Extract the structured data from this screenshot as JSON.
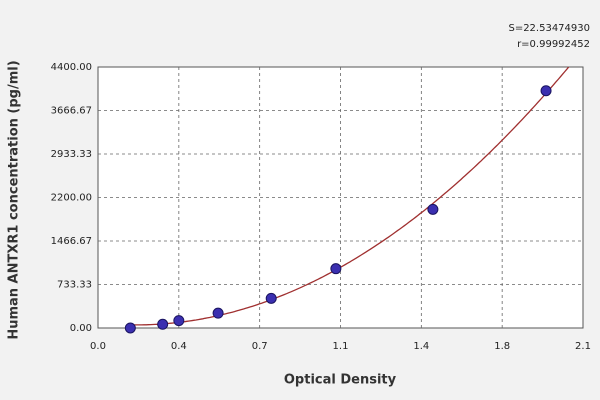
{
  "chart_data": {
    "type": "scatter",
    "annotations": [
      "S=22.53474930",
      "r=0.99992452"
    ],
    "x_label": "Optical Density",
    "y_label": "Human ANTXR1 concentration (pg/ml)",
    "x": [
      0.14,
      0.28,
      0.35,
      0.52,
      0.75,
      1.03,
      1.45,
      1.94
    ],
    "values": [
      0,
      62.5,
      125,
      250,
      500,
      1000,
      2000,
      4000
    ],
    "color": "#3b2fb0",
    "fit_color": "#a03030",
    "xlim": [
      0,
      2.1
    ],
    "ylim": [
      0,
      4400
    ],
    "xticks": [
      {
        "value": 0,
        "label": "0.0"
      },
      {
        "value": 0.35,
        "label": "0.4"
      },
      0.7,
      {
        "value": 1.05,
        "label": "1.1"
      },
      1.4,
      {
        "value": 1.75,
        "label": "1.8"
      },
      2.1
    ],
    "yticks": [
      {
        "value": 0,
        "label": "0.00"
      },
      733.33,
      1466.67,
      {
        "value": 2200,
        "label": "2200.00"
      },
      2933.33,
      3666.67,
      {
        "value": 4400,
        "label": "4400.00"
      }
    ],
    "grid": true
  }
}
